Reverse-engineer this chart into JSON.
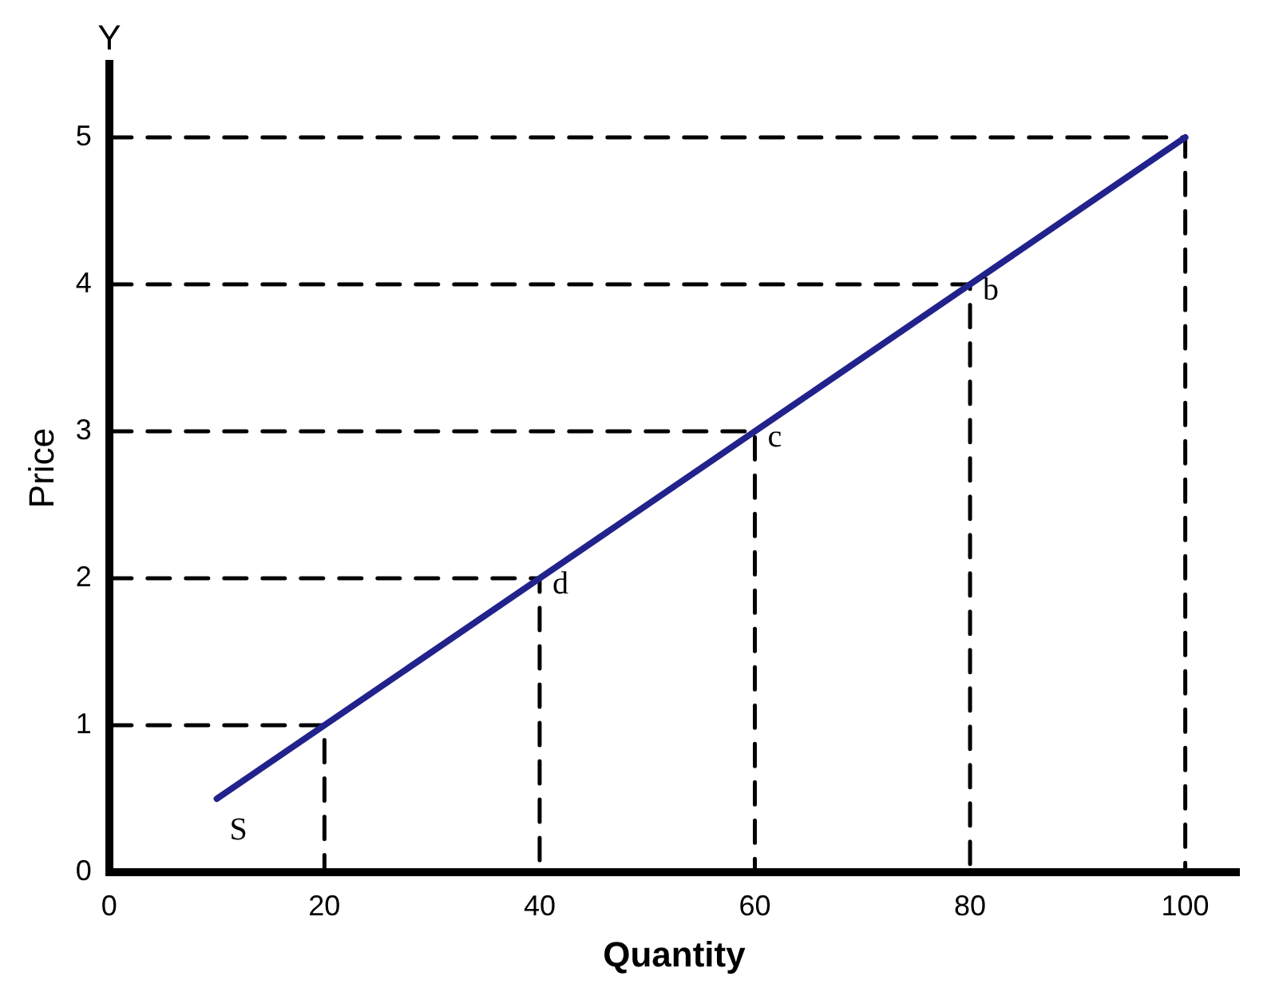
{
  "chart_data": {
    "type": "line",
    "xlabel": "Quantity",
    "ylabel": "Price",
    "x": [
      10,
      20,
      40,
      60,
      80,
      100
    ],
    "series": [
      {
        "color": "#22228c",
        "values": [
          0.5,
          1,
          2,
          3,
          4,
          5
        ]
      },
      {
        "color": "#000000",
        "line_style": "dashed",
        "x": [
          0,
          20,
          20
        ],
        "values": [
          1,
          1,
          0
        ]
      },
      {
        "color": "#000000",
        "line_style": "dashed",
        "x": [
          0,
          40,
          40
        ],
        "values": [
          2,
          2,
          0
        ]
      },
      {
        "color": "#000000",
        "line_style": "dashed",
        "x": [
          0,
          60,
          60
        ],
        "values": [
          3,
          3,
          0
        ]
      },
      {
        "color": "#000000",
        "line_style": "dashed",
        "x": [
          0,
          80,
          80
        ],
        "values": [
          4,
          4,
          0
        ]
      },
      {
        "color": "#000000",
        "line_style": "dashed",
        "x": [
          0,
          100,
          100
        ],
        "values": [
          5,
          5,
          0
        ]
      }
    ],
    "xlim": [
      0,
      105
    ],
    "ylim": [
      0,
      5.5
    ],
    "xticks": [
      0,
      20,
      40,
      60,
      80,
      100
    ],
    "yticks": [
      0,
      1,
      2,
      3,
      4,
      5
    ],
    "annotations": [
      "Y",
      {
        "text": "S",
        "x": 10,
        "y": 0.5
      },
      {
        "text": "d",
        "x": 40,
        "y": 2
      },
      {
        "text": "c",
        "x": 60,
        "y": 3
      },
      {
        "text": "b",
        "x": 80,
        "y": 4
      }
    ],
    "legend": false,
    "marker": "none",
    "line_style": "solid"
  }
}
